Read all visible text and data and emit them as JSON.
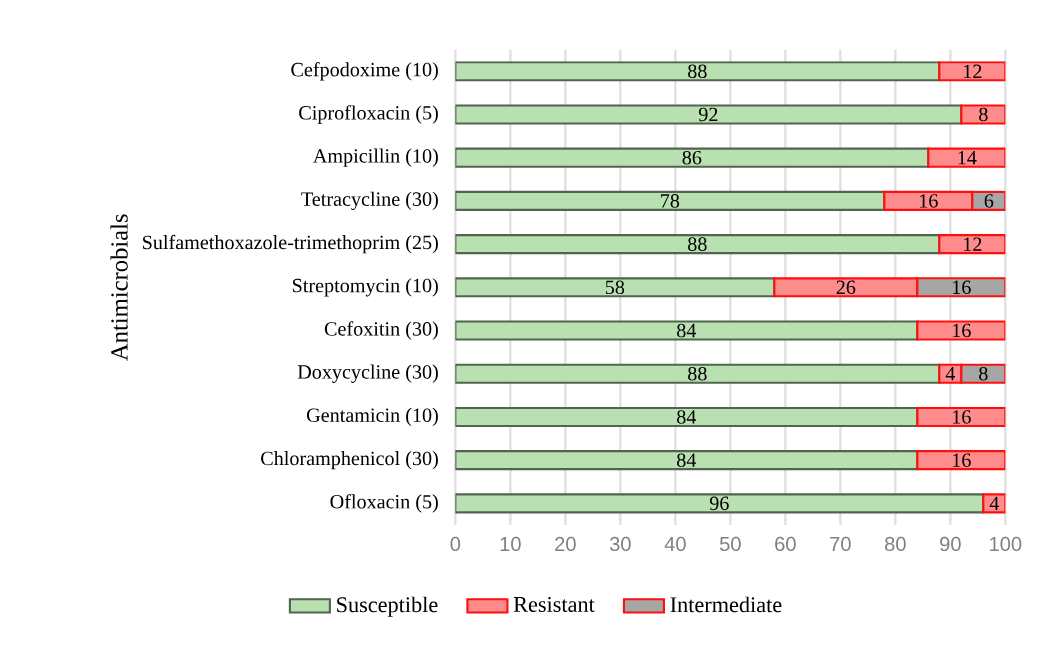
{
  "chart_data": {
    "type": "bar",
    "orientation": "horizontal",
    "stacked": true,
    "ylabel": "Antimicrobials",
    "categories": [
      "Cefpodoxime (10)",
      "Ciprofloxacin (5)",
      "Ampicillin (10)",
      "Tetracycline (30)",
      "Sulfamethoxazole-trimethoprim (25)",
      "Streptomycin (10)",
      "Cefoxitin (30)",
      "Doxycycline (30)",
      "Gentamicin (10)",
      "Chloramphenicol (30)",
      "Ofloxacin (5)"
    ],
    "series": [
      {
        "name": "Susceptible",
        "color": "#b8e0b0",
        "values": [
          88,
          92,
          86,
          78,
          88,
          58,
          84,
          88,
          84,
          84,
          96
        ]
      },
      {
        "name": "Resistant",
        "color": "#ff8c8c",
        "values": [
          12,
          8,
          14,
          16,
          12,
          26,
          16,
          4,
          16,
          16,
          4
        ]
      },
      {
        "name": "Intermediate",
        "color": "#a6a6a6",
        "values": [
          null,
          null,
          null,
          6,
          null,
          16,
          null,
          8,
          null,
          null,
          null
        ]
      }
    ],
    "xlim": [
      0,
      100
    ],
    "xticks": [
      0,
      10,
      20,
      30,
      40,
      50,
      60,
      70,
      80,
      90,
      100
    ],
    "grid": "x",
    "legend": "bottom",
    "data_labels": true
  }
}
